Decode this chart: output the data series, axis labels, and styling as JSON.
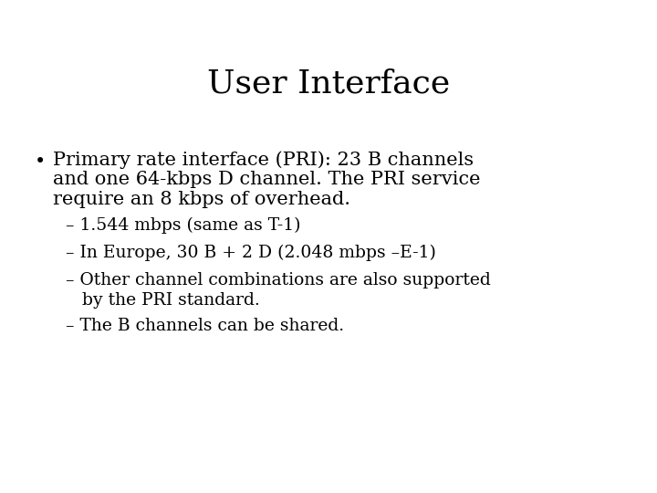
{
  "title": "User Interface",
  "title_fontsize": 26,
  "title_font": "DejaVu Serif",
  "background_color": "#ffffff",
  "text_color": "#000000",
  "bullet_fontsize": 15,
  "sub_fontsize": 13.5,
  "bullet_point": "•",
  "bullet_main_lines": [
    "Primary rate interface (PRI): 23 B channels",
    "and one 64-kbps D channel. The PRI service",
    "require an 8 kbps of overhead."
  ],
  "sub_items": [
    "– 1.544 mbps (same as T-1)",
    "– In Europe, 30 B + 2 D (2.048 mbps –E-1)",
    "– Other channel combinations are also supported",
    "   by the PRI standard.",
    "– The B channels can be shared."
  ]
}
